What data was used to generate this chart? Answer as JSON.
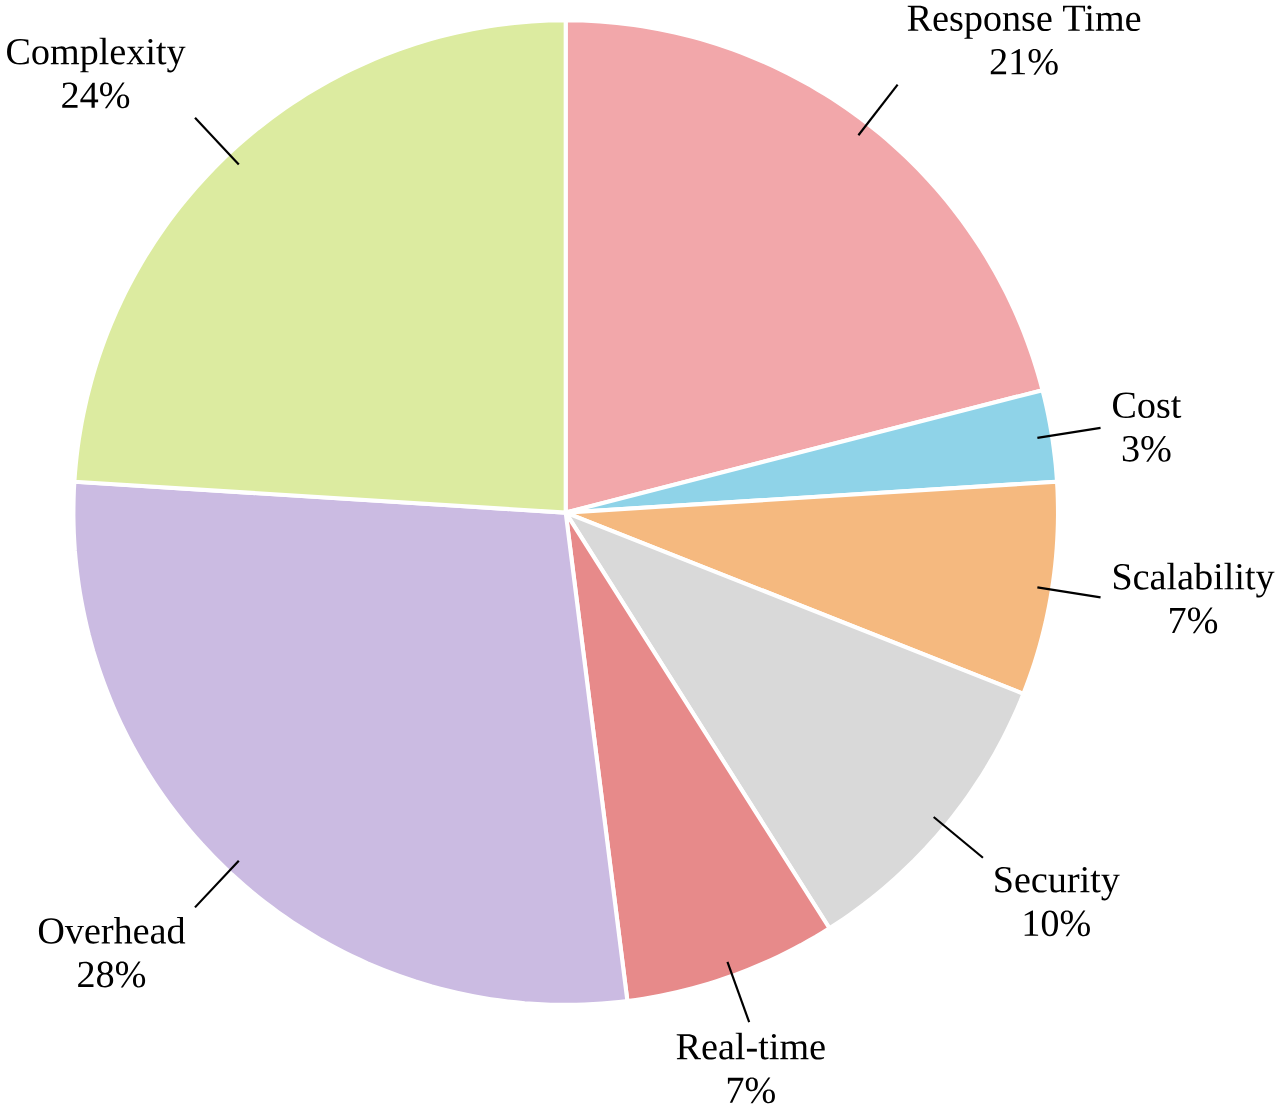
{
  "chart_data": {
    "type": "pie",
    "categories": [
      "Response Time",
      "Cost",
      "Scalability",
      "Security",
      "Real-time",
      "Overhead",
      "Complexity"
    ],
    "values": [
      21,
      3,
      7,
      10,
      7,
      28,
      24
    ],
    "value_labels": [
      "21%",
      "3%",
      "7%",
      "10%",
      "7%",
      "28%",
      "24%"
    ],
    "colors": [
      "#f2a7aa",
      "#8fd3e8",
      "#f5b97f",
      "#d9d9d9",
      "#e78a8a",
      "#cbbbe2",
      "#dcebA0"
    ]
  }
}
